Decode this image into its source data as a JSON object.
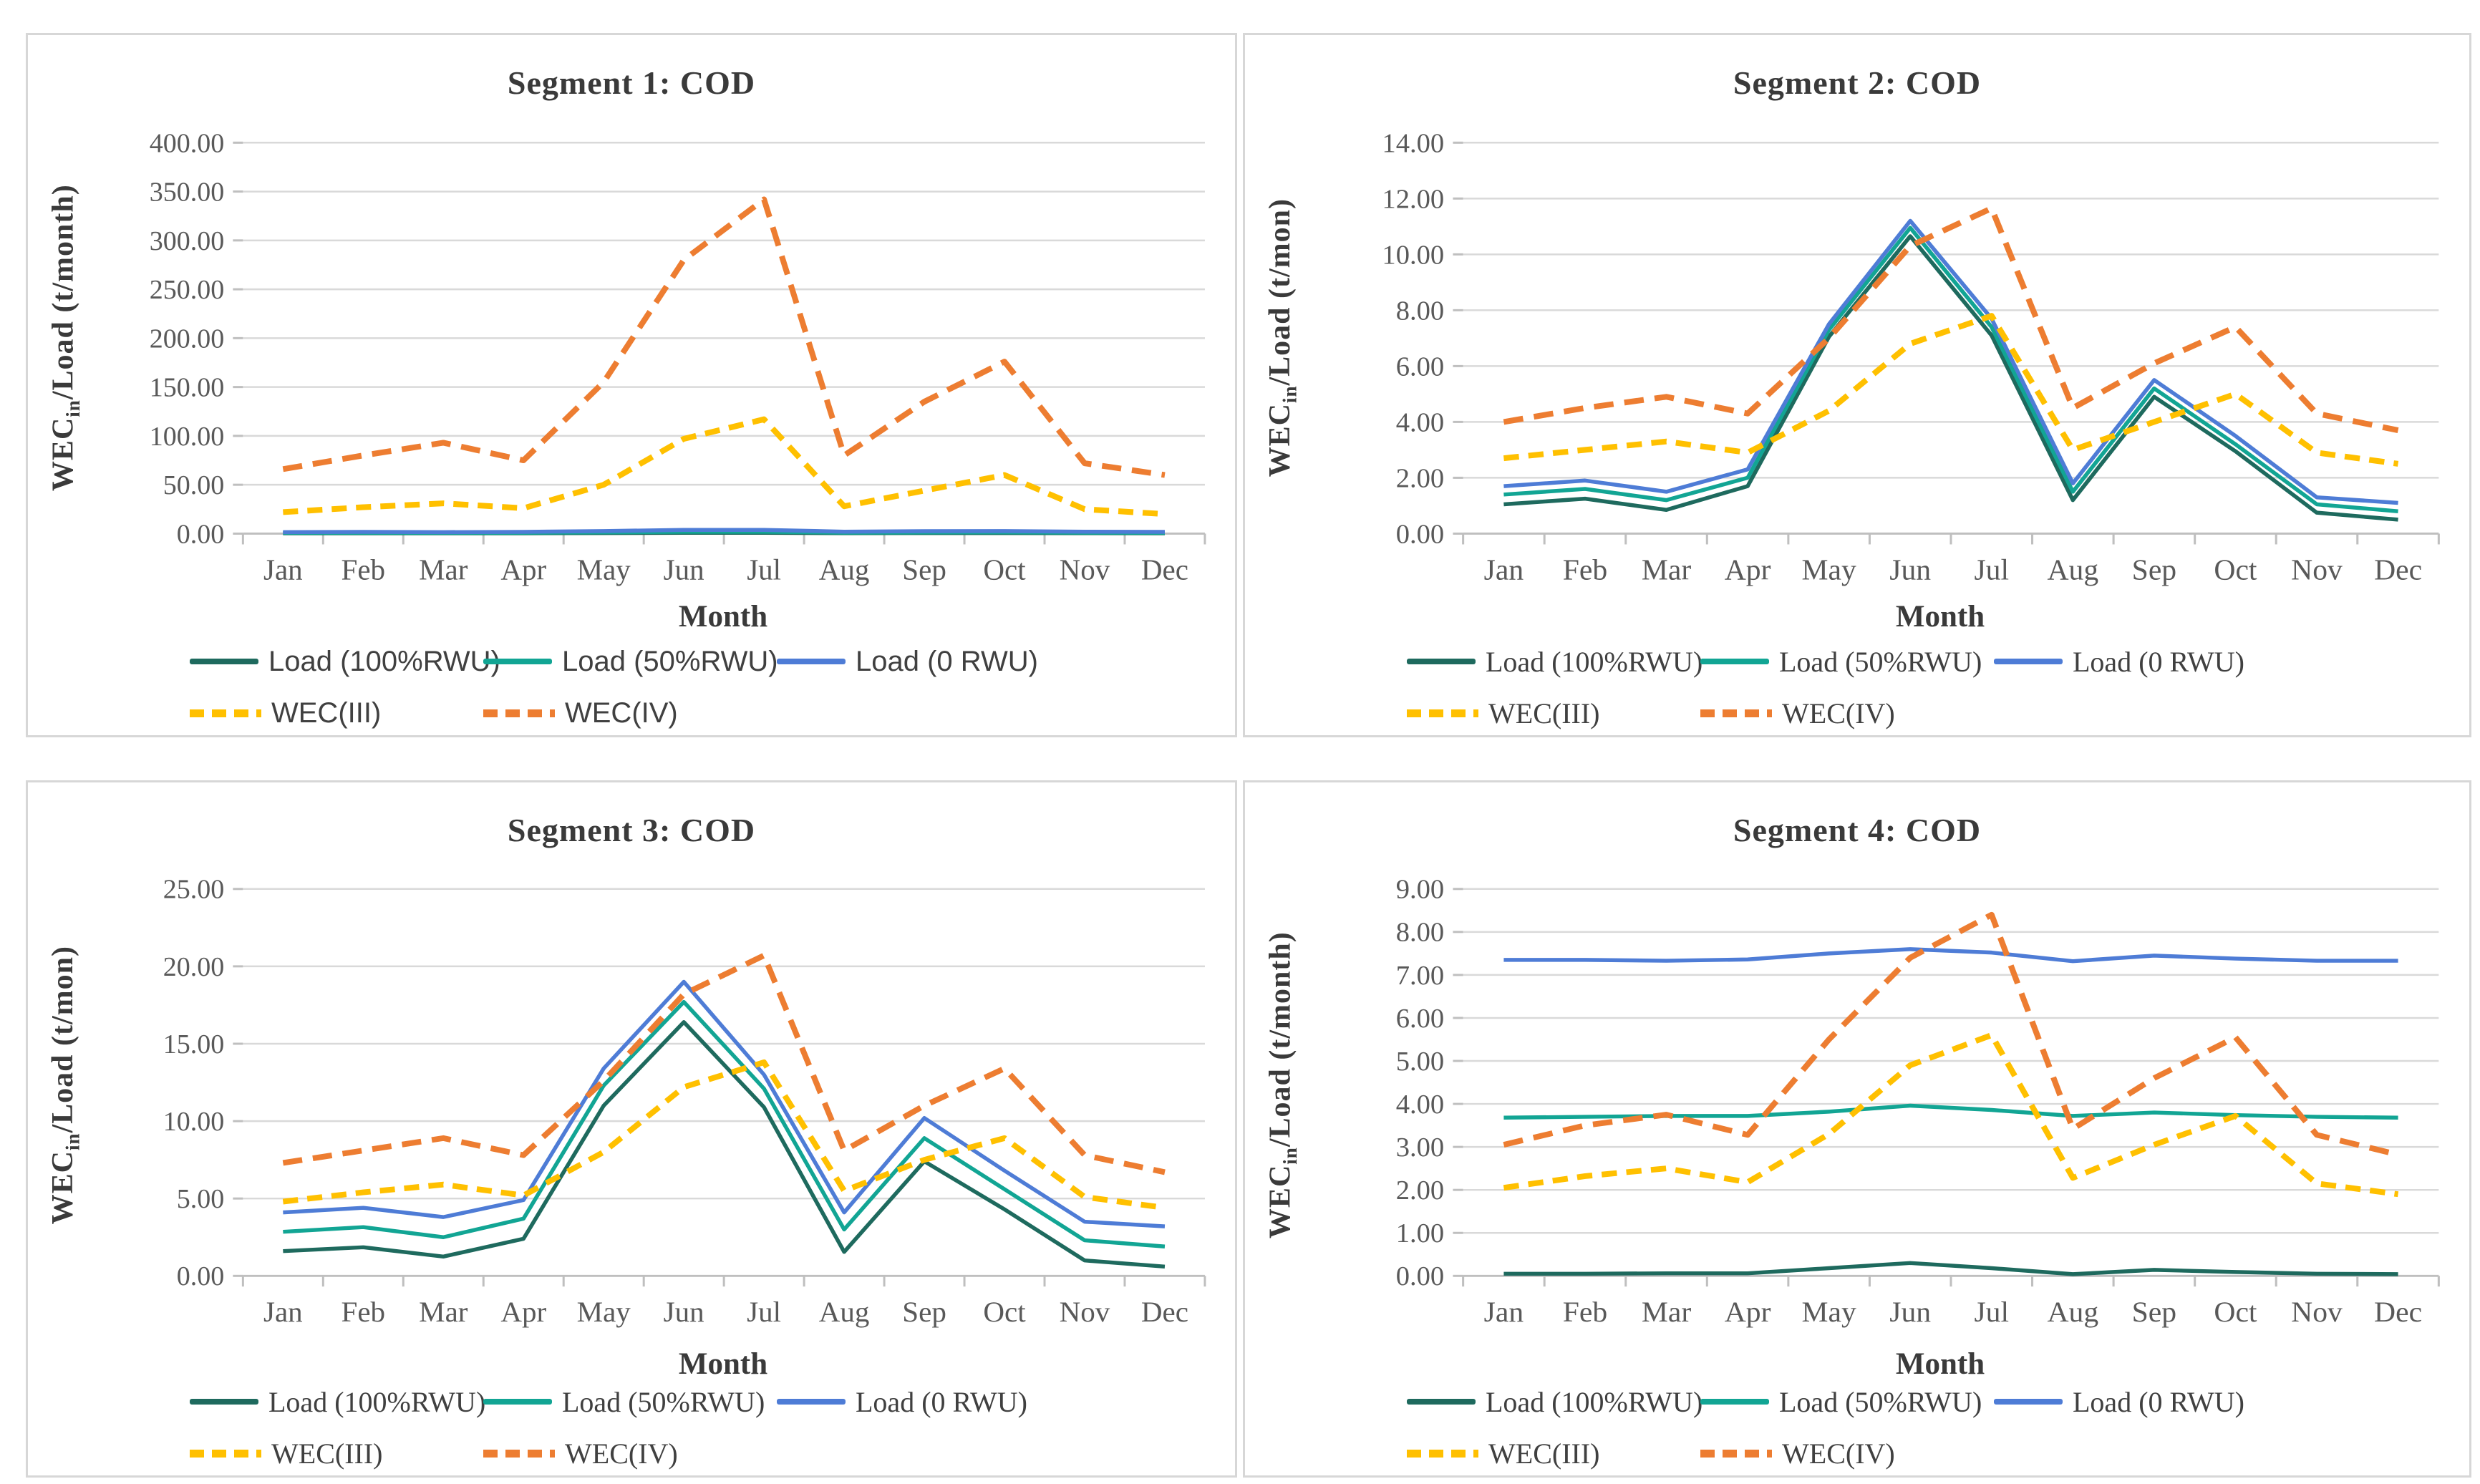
{
  "page": {
    "background": "#ffffff"
  },
  "colors": {
    "load100": "#1e6a5e",
    "load50": "#12a594",
    "load0": "#4e7cd6",
    "wec3": "#ffc000",
    "wec4": "#ed7d31",
    "grid": "#d9d9d9",
    "axis": "#bfbfbf",
    "tick_text": "#595959",
    "title_text": "#3a3a3a",
    "legend_text": "#404040",
    "panel_border": "#d7d7d7"
  },
  "chart_data": [
    {
      "type": "line",
      "title": "Segment 1: COD",
      "xlabel": "Month",
      "ylabel_prefix": "WEC",
      "ylabel_sub": "in",
      "ylabel_rest": "/Load (t/month)",
      "categories": [
        "Jan",
        "Feb",
        "Mar",
        "Apr",
        "May",
        "Jun",
        "Jul",
        "Aug",
        "Sep",
        "Oct",
        "Nov",
        "Dec"
      ],
      "ylim": [
        0,
        400
      ],
      "ytick_step": 50,
      "tick_decimals": 2,
      "grid": true,
      "legend_position": "bottom",
      "series": [
        {
          "name": "Load (100%RWU)",
          "color_key": "load100",
          "style": "solid",
          "values": [
            0.4,
            0.4,
            0.4,
            0.4,
            0.6,
            0.9,
            0.9,
            0.5,
            0.6,
            0.6,
            0.5,
            0.4
          ]
        },
        {
          "name": "Load (50%RWU)",
          "color_key": "load50",
          "style": "solid",
          "values": [
            0.8,
            0.9,
            0.8,
            0.9,
            1.3,
            1.9,
            1.9,
            1.0,
            1.2,
            1.3,
            1.0,
            0.9
          ]
        },
        {
          "name": "Load (0 RWU)",
          "color_key": "load0",
          "style": "solid",
          "values": [
            1.5,
            1.8,
            1.5,
            1.8,
            2.6,
            3.8,
            3.8,
            2.0,
            2.5,
            2.6,
            2.0,
            1.8
          ]
        },
        {
          "name": "WEC(III)",
          "color_key": "wec3",
          "style": "dashed",
          "values": [
            22,
            27,
            31,
            26,
            50,
            97,
            117,
            28,
            44,
            60,
            25,
            20
          ]
        },
        {
          "name": "WEC(IV)",
          "color_key": "wec4",
          "style": "dashed",
          "values": [
            66,
            80,
            93,
            75,
            155,
            280,
            342,
            80,
            135,
            176,
            72,
            60
          ]
        }
      ]
    },
    {
      "type": "line",
      "title": "Segment 2: COD",
      "xlabel": "Month",
      "ylabel_prefix": "WEC",
      "ylabel_sub": "in",
      "ylabel_rest": "/Load (t/mon)",
      "categories": [
        "Jan",
        "Feb",
        "Mar",
        "Apr",
        "May",
        "Jun",
        "Jul",
        "Aug",
        "Sep",
        "Oct",
        "Nov",
        "Dec"
      ],
      "ylim": [
        0,
        14
      ],
      "ytick_step": 2,
      "tick_decimals": 2,
      "grid": true,
      "legend_position": "bottom",
      "series": [
        {
          "name": "Load (100%RWU)",
          "color_key": "load100",
          "style": "solid",
          "values": [
            1.05,
            1.25,
            0.85,
            1.7,
            7.05,
            10.65,
            7.1,
            1.2,
            4.9,
            2.95,
            0.75,
            0.5
          ]
        },
        {
          "name": "Load (50%RWU)",
          "color_key": "load50",
          "style": "solid",
          "values": [
            1.4,
            1.6,
            1.2,
            2.0,
            7.3,
            10.95,
            7.4,
            1.5,
            5.2,
            3.2,
            1.05,
            0.8
          ]
        },
        {
          "name": "Load (0 RWU)",
          "color_key": "load0",
          "style": "solid",
          "values": [
            1.7,
            1.9,
            1.5,
            2.3,
            7.5,
            11.2,
            7.7,
            1.8,
            5.5,
            3.5,
            1.3,
            1.1
          ]
        },
        {
          "name": "WEC(III)",
          "color_key": "wec3",
          "style": "dashed",
          "values": [
            2.7,
            3.0,
            3.3,
            2.9,
            4.4,
            6.8,
            7.8,
            3.0,
            4.0,
            5.0,
            2.9,
            2.5
          ]
        },
        {
          "name": "WEC(IV)",
          "color_key": "wec4",
          "style": "dashed",
          "values": [
            4.0,
            4.5,
            4.9,
            4.3,
            7.0,
            10.3,
            11.65,
            4.5,
            6.1,
            7.4,
            4.3,
            3.7
          ]
        }
      ]
    },
    {
      "type": "line",
      "title": "Segment 3: COD",
      "xlabel": "Month",
      "ylabel_prefix": "WEC",
      "ylabel_sub": "in",
      "ylabel_rest": "/Load (t/mon)",
      "categories": [
        "Jan",
        "Feb",
        "Mar",
        "Apr",
        "May",
        "Jun",
        "Jul",
        "Aug",
        "Sep",
        "Oct",
        "Nov",
        "Dec"
      ],
      "ylim": [
        0,
        25
      ],
      "ytick_step": 5,
      "tick_decimals": 2,
      "grid": true,
      "legend_position": "bottom",
      "series": [
        {
          "name": "Load (100%RWU)",
          "color_key": "load100",
          "style": "solid",
          "values": [
            1.6,
            1.85,
            1.25,
            2.4,
            11.0,
            16.4,
            10.9,
            1.55,
            7.4,
            4.3,
            1.0,
            0.6
          ]
        },
        {
          "name": "Load (50%RWU)",
          "color_key": "load50",
          "style": "solid",
          "values": [
            2.85,
            3.15,
            2.5,
            3.7,
            12.3,
            17.7,
            12.1,
            3.0,
            8.9,
            5.6,
            2.3,
            1.9
          ]
        },
        {
          "name": "Load (0 RWU)",
          "color_key": "load0",
          "style": "solid",
          "values": [
            4.1,
            4.4,
            3.8,
            4.9,
            13.4,
            19.0,
            13.0,
            4.1,
            10.2,
            6.8,
            3.5,
            3.2
          ]
        },
        {
          "name": "WEC(III)",
          "color_key": "wec3",
          "style": "dashed",
          "values": [
            4.8,
            5.4,
            5.9,
            5.2,
            8.0,
            12.2,
            13.8,
            5.5,
            7.5,
            8.9,
            5.1,
            4.4
          ]
        },
        {
          "name": "WEC(IV)",
          "color_key": "wec4",
          "style": "dashed",
          "values": [
            7.3,
            8.1,
            8.9,
            7.8,
            12.6,
            18.2,
            20.7,
            8.1,
            11.0,
            13.4,
            7.8,
            6.7
          ]
        }
      ]
    },
    {
      "type": "line",
      "title": "Segment 4: COD",
      "xlabel": "Month",
      "ylabel_prefix": "WEC",
      "ylabel_sub": "in",
      "ylabel_rest": "/Load (t/month)",
      "categories": [
        "Jan",
        "Feb",
        "Mar",
        "Apr",
        "May",
        "Jun",
        "Jul",
        "Aug",
        "Sep",
        "Oct",
        "Nov",
        "Dec"
      ],
      "ylim": [
        0,
        9
      ],
      "ytick_step": 1,
      "tick_decimals": 2,
      "grid": true,
      "legend_position": "bottom",
      "series": [
        {
          "name": "Load (100%RWU)",
          "color_key": "load100",
          "style": "solid",
          "values": [
            0.05,
            0.05,
            0.06,
            0.06,
            0.18,
            0.3,
            0.18,
            0.04,
            0.14,
            0.09,
            0.05,
            0.04
          ]
        },
        {
          "name": "Load (50%RWU)",
          "color_key": "load50",
          "style": "solid",
          "values": [
            3.68,
            3.7,
            3.72,
            3.72,
            3.82,
            3.96,
            3.86,
            3.72,
            3.8,
            3.74,
            3.7,
            3.68
          ]
        },
        {
          "name": "Load (0 RWU)",
          "color_key": "load0",
          "style": "solid",
          "values": [
            7.35,
            7.35,
            7.33,
            7.36,
            7.5,
            7.6,
            7.52,
            7.32,
            7.45,
            7.38,
            7.33,
            7.33
          ]
        },
        {
          "name": "WEC(III)",
          "color_key": "wec3",
          "style": "dashed",
          "values": [
            2.05,
            2.32,
            2.5,
            2.18,
            3.3,
            4.9,
            5.6,
            2.28,
            3.05,
            3.72,
            2.15,
            1.9
          ]
        },
        {
          "name": "WEC(IV)",
          "color_key": "wec4",
          "style": "dashed",
          "values": [
            3.05,
            3.5,
            3.75,
            3.28,
            5.5,
            7.4,
            8.4,
            3.42,
            4.6,
            5.55,
            3.28,
            2.82
          ]
        }
      ]
    }
  ]
}
